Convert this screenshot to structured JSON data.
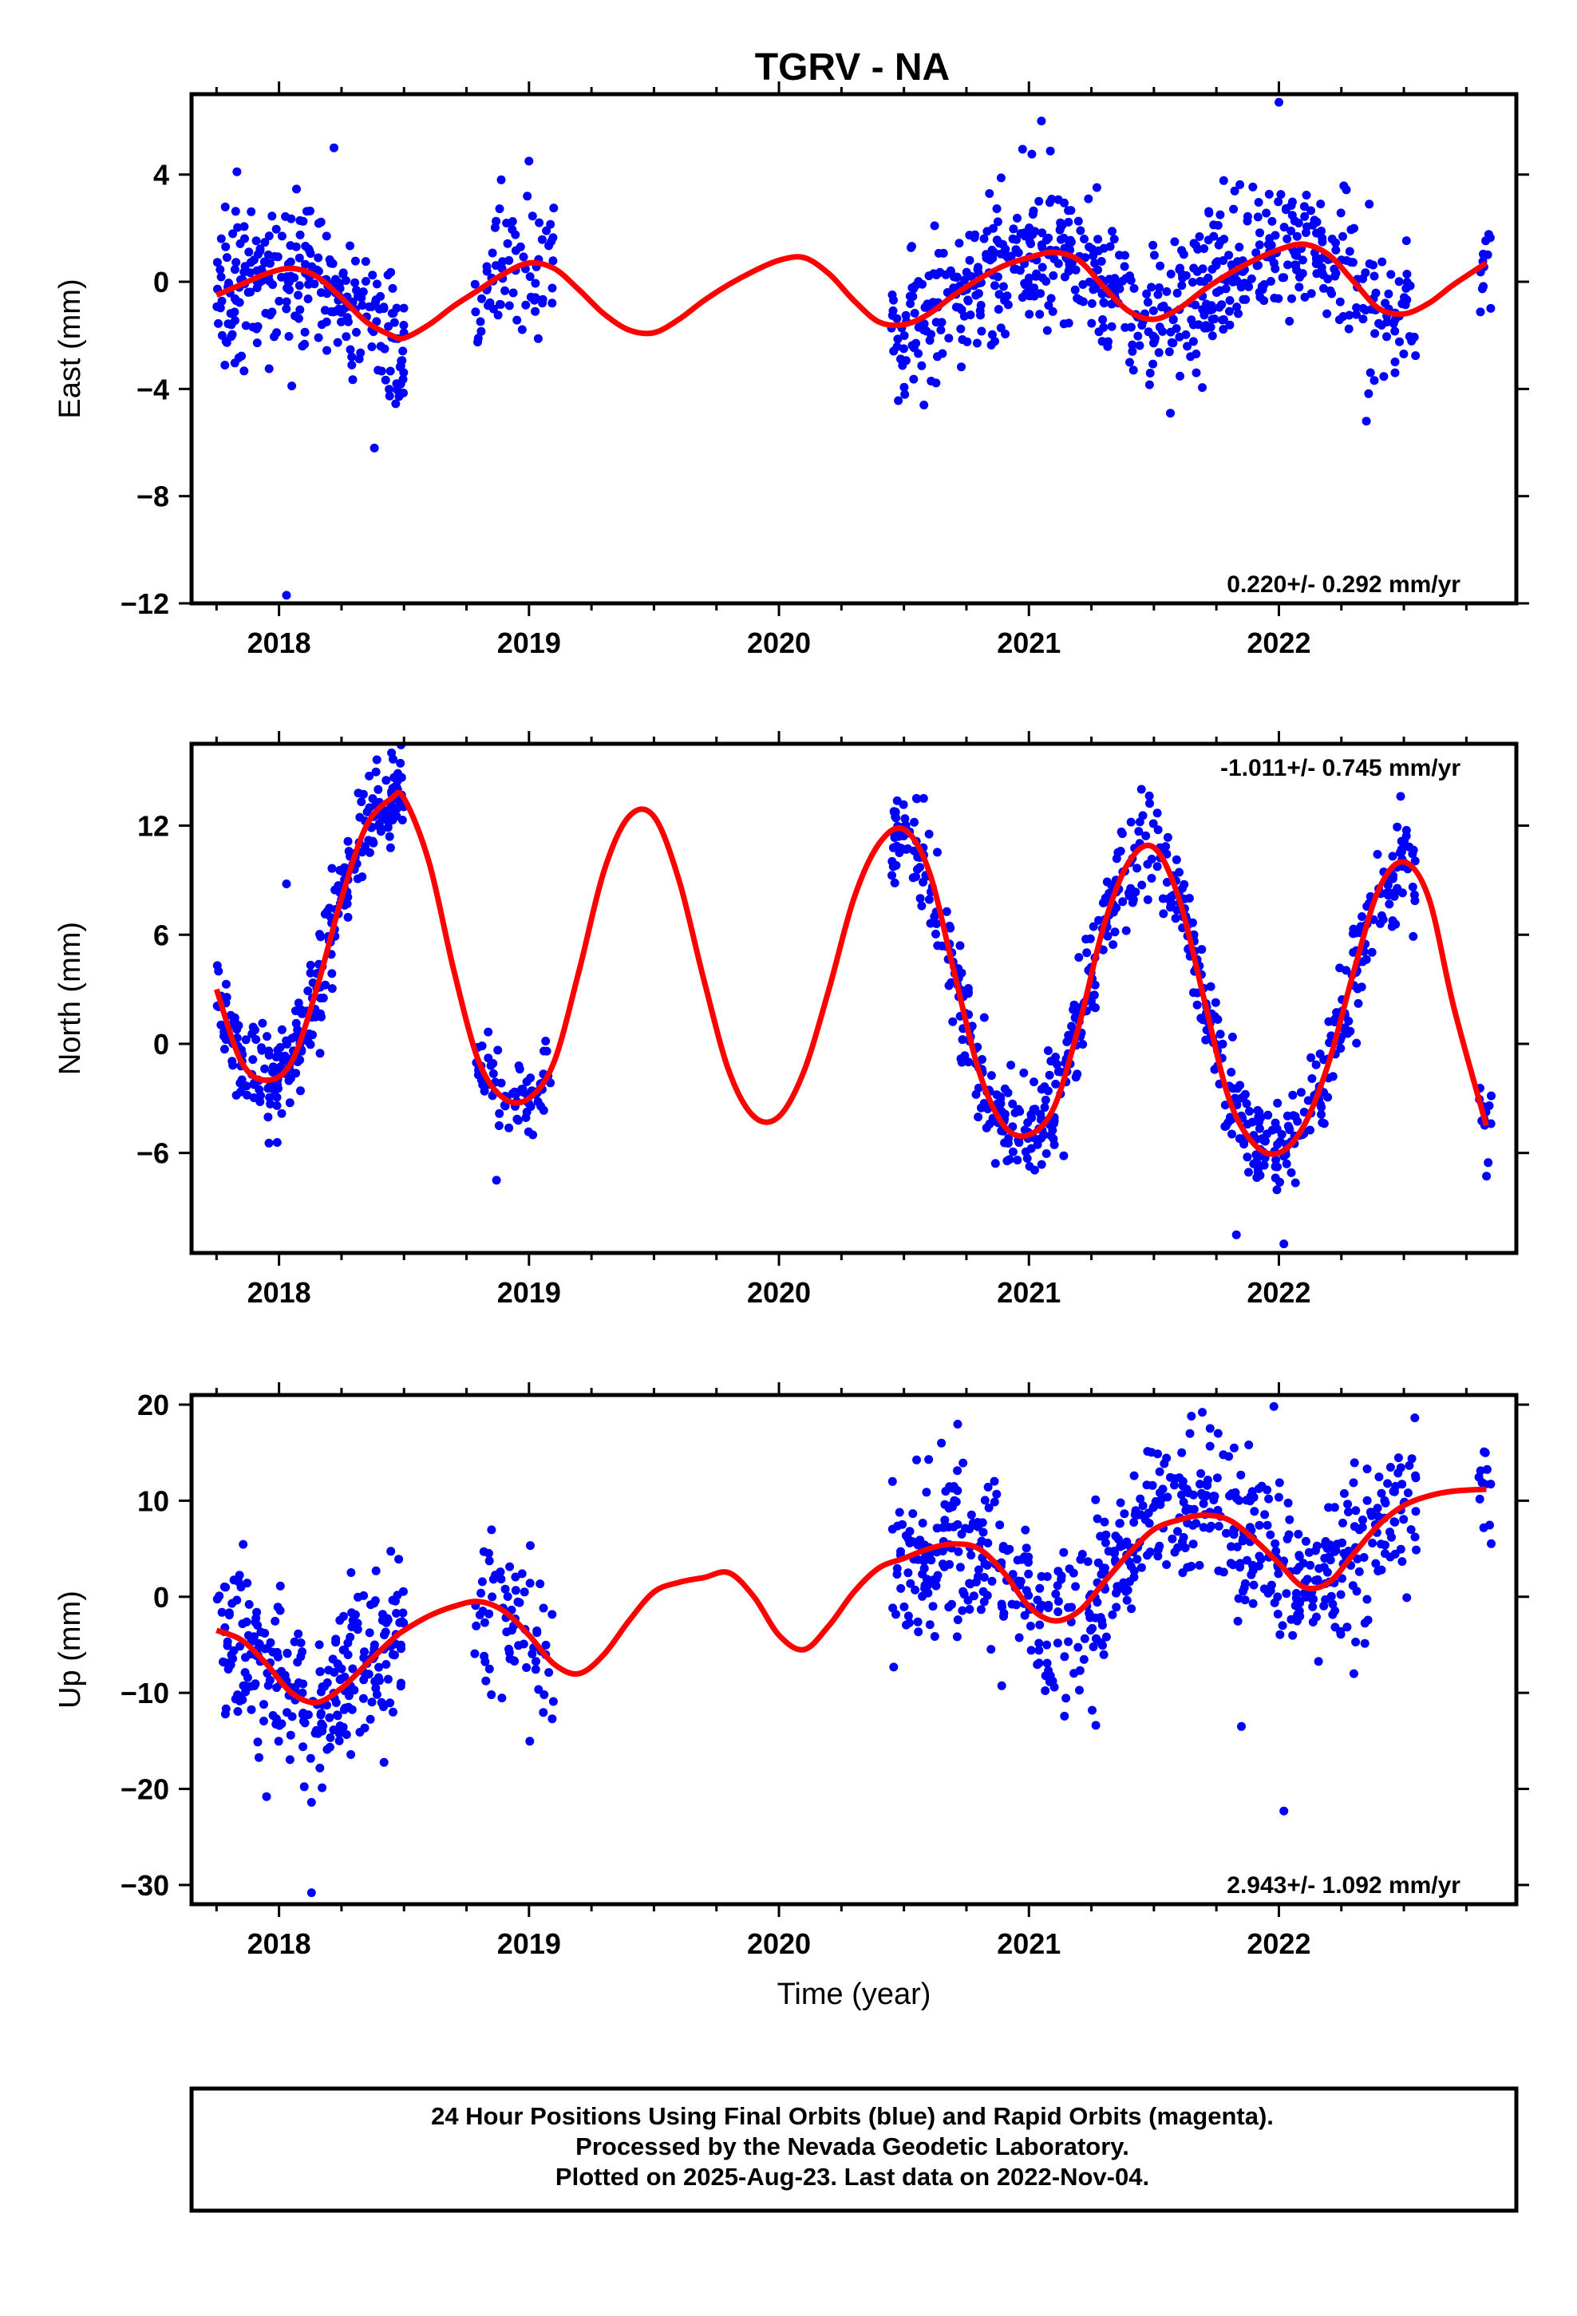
{
  "title": "TGRV - NA",
  "colors": {
    "points": "#0000ff",
    "fit": "#ff0000",
    "frame": "#000000",
    "background": "#ffffff"
  },
  "footer": {
    "line1": "24 Hour Positions Using Final Orbits (blue) and Rapid Orbits (magenta).",
    "line2": "Processed by the Nevada Geodetic Laboratory.",
    "line3": "Plotted on 2025-Aug-23. Last data on 2022-Nov-04."
  },
  "chart_data": [
    {
      "type": "scatter",
      "title": "TGRV - NA",
      "ylabel": "East (mm)",
      "xlabel": "",
      "xlim": [
        2017.65,
        2022.95
      ],
      "ylim": [
        -12,
        7
      ],
      "xticks": [
        2018,
        2019,
        2020,
        2021,
        2022
      ],
      "yticks": [
        4,
        0,
        -4,
        -8,
        -12
      ],
      "rate_text": "0.220+/- 0.292 mm/yr",
      "rate_position": "bottom-right",
      "grid": false,
      "fit": {
        "name": "model",
        "x": [
          2017.75,
          2017.85,
          2017.95,
          2018.05,
          2018.15,
          2018.25,
          2018.35,
          2018.45,
          2018.5,
          2018.6,
          2018.7,
          2018.8,
          2018.9,
          2019.0,
          2019.1,
          2019.2,
          2019.3,
          2019.4,
          2019.5,
          2019.6,
          2019.7,
          2019.8,
          2019.9,
          2020.0,
          2020.1,
          2020.2,
          2020.3,
          2020.4,
          2020.5,
          2020.6,
          2020.7,
          2020.8,
          2020.9,
          2021.0,
          2021.1,
          2021.2,
          2021.3,
          2021.4,
          2021.5,
          2021.6,
          2021.7,
          2021.8,
          2021.9,
          2022.0,
          2022.1,
          2022.2,
          2022.3,
          2022.4,
          2022.5,
          2022.6,
          2022.7,
          2022.83
        ],
        "y": [
          -0.5,
          -0.1,
          0.3,
          0.5,
          0.2,
          -0.6,
          -1.5,
          -2.0,
          -2.1,
          -1.6,
          -0.9,
          -0.3,
          0.3,
          0.7,
          0.5,
          -0.3,
          -1.2,
          -1.8,
          -1.9,
          -1.4,
          -0.7,
          -0.1,
          0.4,
          0.8,
          0.9,
          0.3,
          -0.7,
          -1.5,
          -1.6,
          -1.2,
          -0.5,
          0.1,
          0.6,
          0.9,
          1.1,
          0.8,
          -0.2,
          -1.1,
          -1.4,
          -1.0,
          -0.3,
          0.3,
          0.8,
          1.2,
          1.4,
          1.0,
          0.0,
          -1.0,
          -1.2,
          -0.8,
          -0.1,
          0.7
        ]
      },
      "points_groups": [
        {
          "x0": 2017.75,
          "x1": 2018.5,
          "center": "fit",
          "spread": 1.3,
          "n": 260
        },
        {
          "x0": 2018.78,
          "x1": 2019.1,
          "center": "fit",
          "spread": 1.2,
          "n": 70
        },
        {
          "x0": 2020.45,
          "x1": 2022.55,
          "center": "fit",
          "spread": 1.3,
          "n": 640
        },
        {
          "x0": 2022.8,
          "x1": 2022.85,
          "center": "fit",
          "spread": 0.9,
          "n": 12
        }
      ],
      "outliers": [
        [
          2018.03,
          -11.7
        ],
        [
          2018.22,
          5.0
        ],
        [
          2019.0,
          4.5
        ],
        [
          2021.05,
          6.0
        ],
        [
          2022.0,
          6.7
        ],
        [
          2022.35,
          -5.2
        ],
        [
          2020.58,
          -4.6
        ]
      ]
    },
    {
      "type": "scatter",
      "ylabel": "North (mm)",
      "xlabel": "",
      "xlim": [
        2017.65,
        2022.95
      ],
      "ylim": [
        -11.5,
        16.5
      ],
      "xticks": [
        2018,
        2019,
        2020,
        2021,
        2022
      ],
      "yticks": [
        12,
        6,
        0,
        -6
      ],
      "rate_text": "-1.011+/- 0.745 mm/yr",
      "rate_position": "top-right",
      "grid": false,
      "fit": {
        "name": "model",
        "x": [
          2017.75,
          2017.85,
          2017.95,
          2018.05,
          2018.15,
          2018.25,
          2018.35,
          2018.45,
          2018.5,
          2018.6,
          2018.7,
          2018.8,
          2018.9,
          2019.0,
          2019.1,
          2019.2,
          2019.3,
          2019.4,
          2019.5,
          2019.6,
          2019.7,
          2019.8,
          2019.9,
          2020.0,
          2020.1,
          2020.2,
          2020.3,
          2020.4,
          2020.5,
          2020.6,
          2020.7,
          2020.8,
          2020.9,
          2021.0,
          2021.1,
          2021.2,
          2021.3,
          2021.4,
          2021.5,
          2021.6,
          2021.7,
          2021.8,
          2021.9,
          2022.0,
          2022.1,
          2022.2,
          2022.3,
          2022.4,
          2022.5,
          2022.6,
          2022.7,
          2022.83
        ],
        "y": [
          3.0,
          -1.0,
          -2.0,
          -1.0,
          3.0,
          8.0,
          12.0,
          13.5,
          13.5,
          10.0,
          4.0,
          -1.0,
          -3.0,
          -3.0,
          -1.0,
          4.0,
          9.5,
          12.5,
          12.5,
          9.0,
          3.5,
          -1.5,
          -4.0,
          -4.0,
          -1.5,
          3.0,
          8.0,
          11.0,
          11.8,
          9.5,
          4.0,
          -1.5,
          -4.5,
          -5.0,
          -3.5,
          1.0,
          6.5,
          10.0,
          10.8,
          8.0,
          2.5,
          -3.0,
          -5.5,
          -6.0,
          -4.5,
          -1.0,
          4.0,
          8.5,
          10.0,
          8.0,
          2.0,
          -4.5
        ]
      },
      "points_groups": [
        {
          "x0": 2017.75,
          "x1": 2018.5,
          "center": "fit",
          "spread": 1.4,
          "n": 270
        },
        {
          "x0": 2018.78,
          "x1": 2019.1,
          "center": "fit",
          "spread": 1.4,
          "n": 70
        },
        {
          "x0": 2020.45,
          "x1": 2022.55,
          "center": "fit",
          "spread": 1.4,
          "n": 640
        },
        {
          "x0": 2022.8,
          "x1": 2022.85,
          "center": "fit",
          "spread": 1.5,
          "n": 12
        }
      ],
      "outliers": [
        [
          2018.03,
          8.8
        ],
        [
          2018.45,
          16.0
        ],
        [
          2018.87,
          -7.5
        ],
        [
          2020.55,
          13.5
        ],
        [
          2021.45,
          14.0
        ],
        [
          2021.83,
          -10.5
        ],
        [
          2022.02,
          -11.0
        ]
      ]
    },
    {
      "type": "scatter",
      "ylabel": "Up (mm)",
      "xlabel": "Time (year)",
      "xlim": [
        2017.65,
        2022.95
      ],
      "ylim": [
        -32,
        21
      ],
      "xticks": [
        2018,
        2019,
        2020,
        2021,
        2022
      ],
      "yticks": [
        20,
        10,
        0,
        -10,
        -20,
        -30
      ],
      "rate_text": "2.943+/- 1.092 mm/yr",
      "rate_position": "bottom-right",
      "grid": false,
      "fit": {
        "name": "model",
        "x": [
          2017.75,
          2017.85,
          2017.95,
          2018.05,
          2018.15,
          2018.25,
          2018.35,
          2018.45,
          2018.5,
          2018.6,
          2018.7,
          2018.8,
          2018.9,
          2019.0,
          2019.1,
          2019.2,
          2019.3,
          2019.4,
          2019.5,
          2019.6,
          2019.7,
          2019.8,
          2019.9,
          2020.0,
          2020.1,
          2020.2,
          2020.3,
          2020.4,
          2020.5,
          2020.6,
          2020.7,
          2020.8,
          2020.9,
          2021.0,
          2021.1,
          2021.2,
          2021.3,
          2021.4,
          2021.5,
          2021.6,
          2021.7,
          2021.8,
          2021.9,
          2022.0,
          2022.1,
          2022.2,
          2022.3,
          2022.4,
          2022.5,
          2022.6,
          2022.7,
          2022.83
        ],
        "y": [
          -3.5,
          -4.5,
          -7.0,
          -10.0,
          -11.0,
          -9.5,
          -7.0,
          -4.5,
          -3.5,
          -2.0,
          -1.0,
          -0.5,
          -1.5,
          -4.0,
          -7.0,
          -8.0,
          -6.0,
          -2.5,
          0.5,
          1.5,
          2.0,
          2.5,
          0.0,
          -4.0,
          -5.5,
          -3.0,
          0.5,
          3.0,
          4.0,
          5.0,
          5.5,
          5.0,
          2.5,
          -1.0,
          -2.5,
          -1.5,
          1.5,
          4.5,
          7.0,
          8.0,
          8.5,
          8.0,
          6.0,
          3.5,
          1.0,
          1.5,
          4.5,
          7.5,
          9.5,
          10.5,
          11.0,
          11.2
        ]
      },
      "points_groups": [
        {
          "x0": 2017.75,
          "x1": 2018.5,
          "center": "fit",
          "spread": 4.2,
          "n": 270
        },
        {
          "x0": 2018.78,
          "x1": 2019.1,
          "center": "fit",
          "spread": 4.0,
          "n": 70
        },
        {
          "x0": 2020.45,
          "x1": 2022.55,
          "center": "fit",
          "spread": 4.2,
          "n": 640
        },
        {
          "x0": 2022.8,
          "x1": 2022.85,
          "center": "fit",
          "spread": 3.2,
          "n": 12
        }
      ],
      "outliers": [
        [
          2018.13,
          -30.8
        ],
        [
          2017.95,
          -20.8
        ],
        [
          2018.13,
          -21.4
        ],
        [
          2021.85,
          -13.5
        ],
        [
          2022.02,
          -22.3
        ],
        [
          2022.3,
          -8.0
        ],
        [
          2020.65,
          16.0
        ],
        [
          2021.65,
          18.8
        ],
        [
          2021.98,
          19.8
        ]
      ]
    }
  ]
}
